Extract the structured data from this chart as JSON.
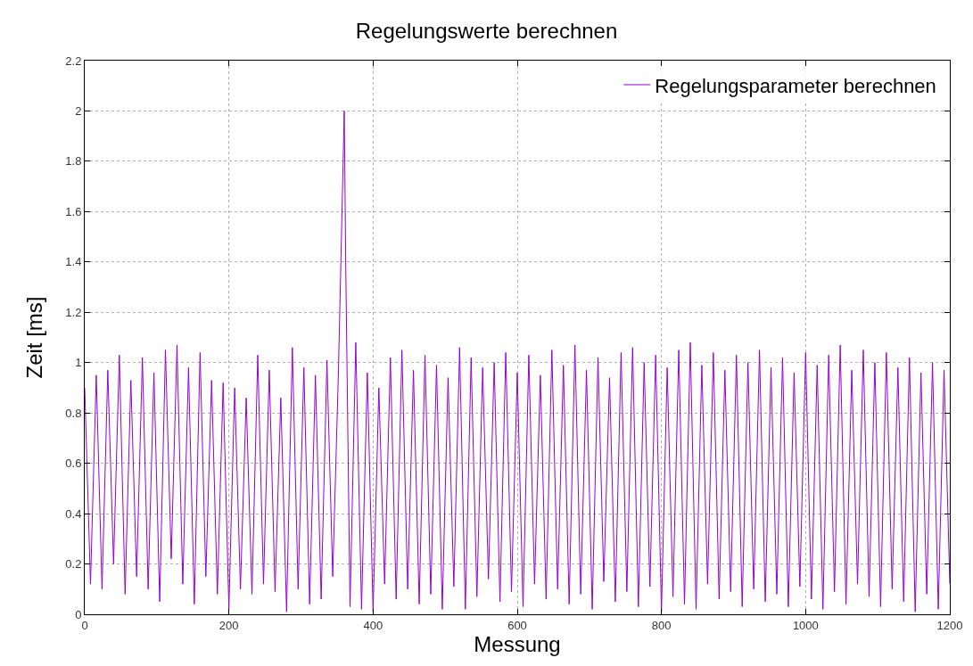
{
  "chart_data": {
    "type": "line",
    "title": "Regelungswerte berechnen",
    "xlabel": "Messung",
    "ylabel": "Zeit [ms]",
    "xlim": [
      0,
      1200
    ],
    "xticks": [
      0,
      200,
      400,
      600,
      800,
      1000,
      1200
    ],
    "ylim": [
      0,
      2.2
    ],
    "yticks": [
      0,
      0.2,
      0.4,
      0.6,
      0.8,
      1,
      1.2,
      1.4,
      1.6,
      1.8,
      2,
      2.2
    ],
    "grid": true,
    "legend": "top right",
    "line_style": "solid",
    "series": [
      {
        "name": "Regelungsparameter berechnen",
        "color": "#9400d3",
        "x": [
          0,
          8,
          16,
          24,
          32,
          40,
          48,
          56,
          64,
          72,
          80,
          88,
          96,
          104,
          112,
          120,
          128,
          136,
          144,
          152,
          160,
          168,
          176,
          184,
          192,
          200,
          208,
          216,
          224,
          232,
          240,
          248,
          256,
          264,
          272,
          280,
          288,
          296,
          304,
          312,
          320,
          328,
          336,
          344,
          352,
          360,
          362,
          368,
          376,
          384,
          392,
          400,
          408,
          416,
          424,
          432,
          440,
          448,
          456,
          464,
          472,
          480,
          488,
          496,
          504,
          512,
          520,
          528,
          536,
          544,
          552,
          560,
          568,
          576,
          584,
          592,
          600,
          608,
          616,
          624,
          632,
          640,
          648,
          656,
          664,
          672,
          680,
          688,
          696,
          704,
          712,
          720,
          728,
          736,
          744,
          752,
          760,
          768,
          776,
          784,
          792,
          800,
          808,
          816,
          824,
          832,
          840,
          848,
          856,
          864,
          872,
          880,
          888,
          896,
          904,
          912,
          920,
          928,
          936,
          944,
          952,
          960,
          968,
          976,
          984,
          992,
          1000,
          1008,
          1016,
          1024,
          1032,
          1040,
          1048,
          1056,
          1064,
          1072,
          1080,
          1088,
          1096,
          1104,
          1112,
          1120,
          1128,
          1136,
          1144,
          1152,
          1160,
          1168,
          1176,
          1184,
          1192,
          1200
        ],
        "values": [
          0.9,
          0.12,
          0.95,
          0.1,
          0.97,
          0.2,
          1.03,
          0.08,
          0.93,
          0.15,
          1.02,
          0.1,
          0.96,
          0.05,
          1.05,
          0.22,
          1.07,
          0.12,
          0.98,
          0.04,
          1.04,
          0.15,
          0.93,
          0.08,
          0.92,
          0.02,
          0.9,
          0.1,
          0.86,
          0.08,
          1.03,
          0.12,
          0.97,
          0.09,
          0.86,
          0.01,
          1.06,
          0.1,
          0.98,
          0.04,
          0.95,
          0.06,
          1.01,
          0.15,
          0.97,
          2.0,
          1.41,
          0.03,
          1.08,
          0.02,
          0.96,
          0.01,
          0.9,
          0.12,
          1.02,
          0.06,
          1.05,
          0.1,
          0.97,
          0.04,
          1.03,
          0.08,
          0.99,
          0.02,
          0.94,
          0.11,
          1.06,
          0.02,
          1.02,
          0.07,
          0.98,
          0.14,
          1.0,
          0.05,
          1.04,
          0.09,
          0.96,
          0.03,
          1.03,
          0.12,
          0.95,
          0.06,
          1.05,
          0.1,
          0.99,
          0.04,
          1.07,
          0.08,
          0.97,
          0.02,
          1.02,
          0.13,
          0.94,
          0.05,
          1.04,
          0.09,
          1.06,
          0.03,
          1.0,
          0.11,
          1.03,
          0.01,
          0.98,
          0.07,
          1.05,
          0.04,
          1.08,
          0.02,
          0.99,
          0.12,
          1.04,
          0.06,
          0.97,
          0.09,
          1.03,
          0.03,
          1.0,
          0.1,
          1.05,
          0.05,
          0.98,
          0.08,
          1.02,
          0.03,
          0.96,
          0.11,
          1.04,
          0.06,
          0.99,
          0.02,
          1.03,
          0.09,
          1.07,
          0.04,
          0.97,
          0.12,
          1.05,
          0.07,
          1.0,
          0.03,
          1.04,
          0.1,
          0.98,
          0.05,
          1.02,
          0.01,
          0.96,
          0.08,
          1.0,
          0.02,
          0.97,
          0.12
        ]
      }
    ]
  }
}
